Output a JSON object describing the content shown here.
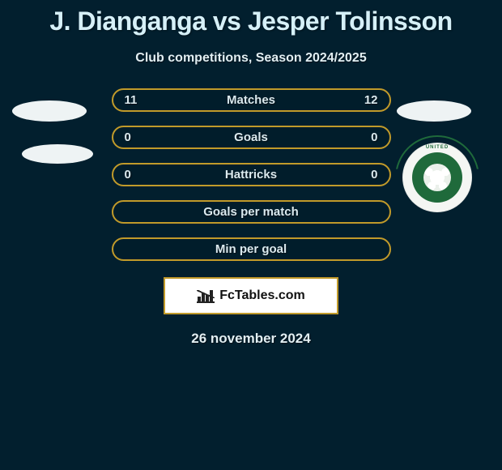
{
  "title": "J. Dianganga vs Jesper Tolinsson",
  "subtitle": "Club competitions, Season 2024/2025",
  "date": "26 november 2024",
  "brand": "FcTables.com",
  "colors": {
    "background": "#021f2e",
    "row_border": "#c19a2a",
    "text": "#dbe9ee",
    "pill": "#eef3f4",
    "badge_green": "#1f6a3b",
    "badge_bg": "#f4f6f3",
    "brand_box_bg": "#ffffff"
  },
  "club_badge": {
    "outer_text": "UNITED",
    "shape": "football"
  },
  "rows": [
    {
      "label": "Matches",
      "left": "11",
      "right": "12"
    },
    {
      "label": "Goals",
      "left": "0",
      "right": "0"
    },
    {
      "label": "Hattricks",
      "left": "0",
      "right": "0"
    },
    {
      "label": "Goals per match",
      "left": "",
      "right": ""
    },
    {
      "label": "Min per goal",
      "left": "",
      "right": ""
    }
  ]
}
